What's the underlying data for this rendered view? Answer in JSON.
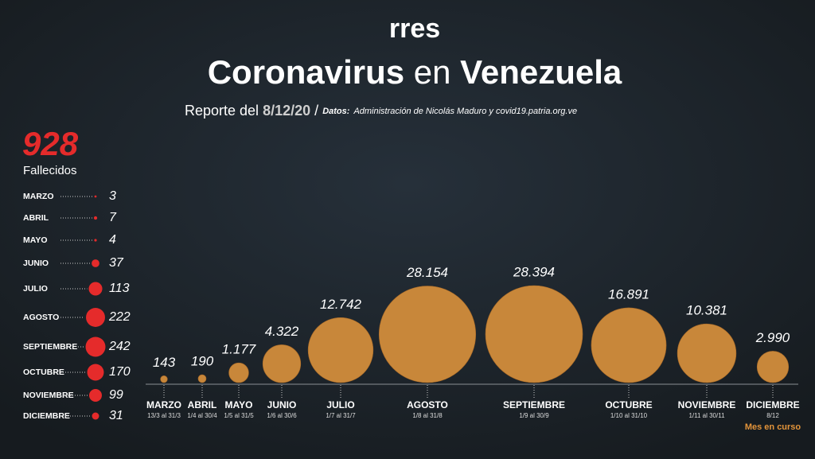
{
  "header": {
    "logo": "rres",
    "title_parts": [
      "Coronavirus",
      "en",
      "Venezuela"
    ],
    "subtitle": {
      "prefix": "Reporte del",
      "date": "8/12/20",
      "separator": "/",
      "source_label": "Datos:",
      "source": "Administración de Nicolás Maduro y covid19.patria.org.ve"
    }
  },
  "chart_data": [
    {
      "type": "bubble",
      "categories": [
        "MARZO",
        "ABRIL",
        "MAYO",
        "JUNIO",
        "JULIO",
        "AGOSTO",
        "SEPTIEMBRE",
        "OCTUBRE",
        "NOVIEMBRE",
        "DICIEMBRE"
      ],
      "date_ranges": [
        "13/3 al 31/3",
        "1/4 al 30/4",
        "1/5 al 31/5",
        "1/6 al 30/6",
        "1/7 al 31/7",
        "1/8 al 31/8",
        "1/9 al 30/9",
        "1/10 al  31/10",
        "1/11 al 30/11",
        "8/12"
      ],
      "values": [
        143,
        190,
        1177,
        4322,
        12742,
        28154,
        28394,
        16891,
        10381,
        2990
      ],
      "value_labels": [
        "143",
        "190",
        "1.177",
        "4.322",
        "12.742",
        "28.154",
        "28.394",
        "16.891",
        "10.381",
        "2.990"
      ],
      "color": "#c8873a",
      "annotation": "Mes en curso"
    },
    {
      "type": "bubble",
      "total": 928,
      "total_label": "Fallecidos",
      "categories": [
        "MARZO",
        "ABRIL",
        "MAYO",
        "JUNIO",
        "JULIO",
        "AGOSTO",
        "SEPTIEMBRE",
        "OCTUBRE",
        "NOVIEMBRE",
        "DICIEMBRE"
      ],
      "values": [
        3,
        7,
        4,
        37,
        113,
        222,
        242,
        170,
        99,
        31
      ],
      "color": "#e52b2b"
    }
  ]
}
